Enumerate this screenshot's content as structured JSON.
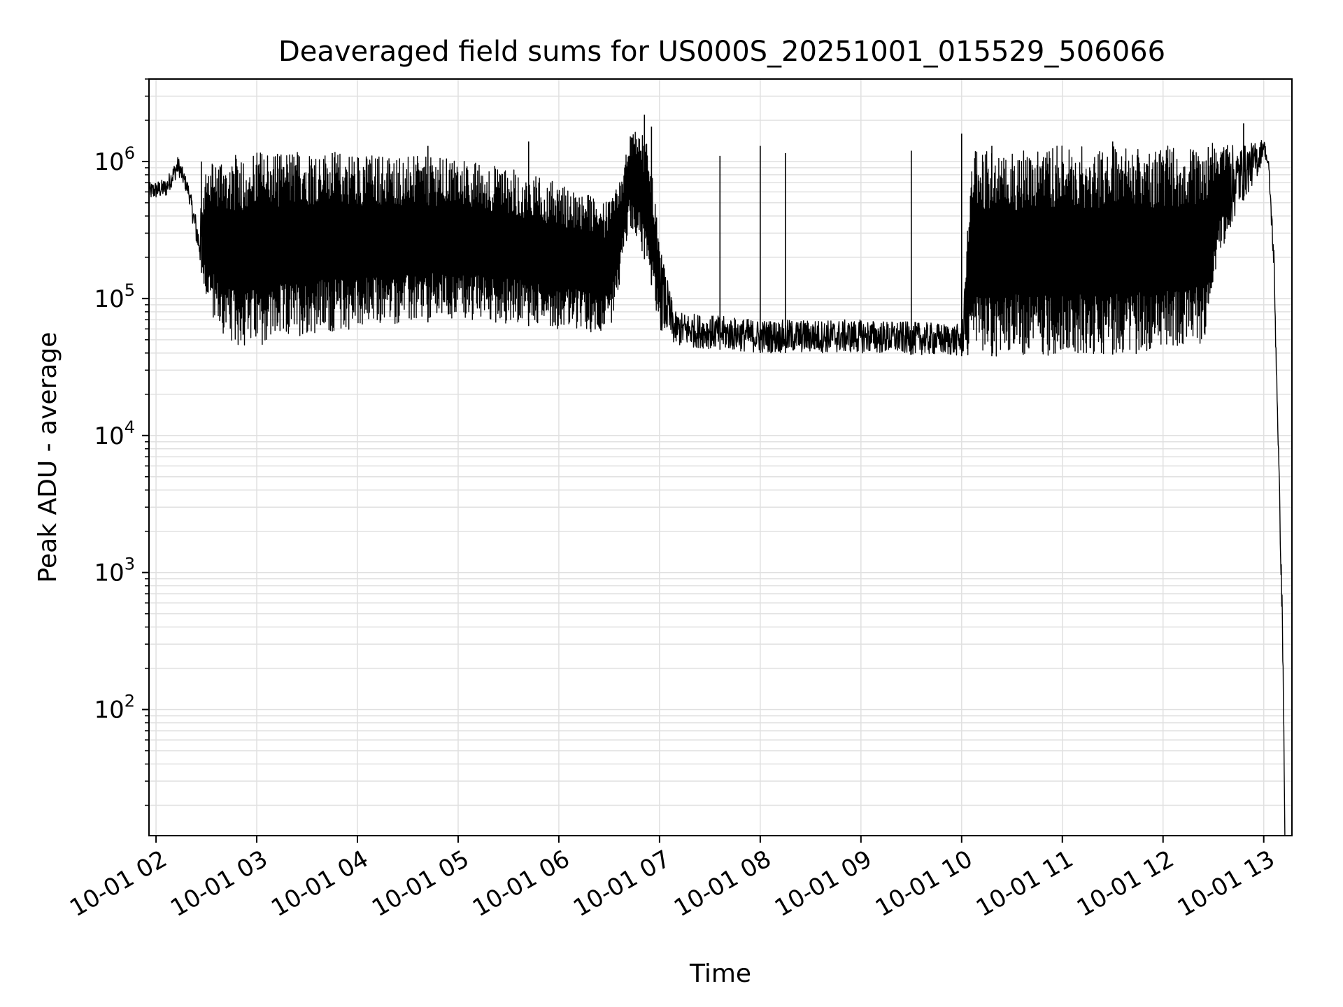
{
  "chart_data": {
    "type": "line",
    "title": "Deaveraged field sums for US000S_20251001_015529_506066",
    "xlabel": "Time",
    "ylabel": "Peak ADU - average",
    "yscale": "log",
    "ylim": [
      12,
      4000000
    ],
    "xlim_hours": [
      1.93,
      13.28
    ],
    "grid": true,
    "line_color": "#000000",
    "grid_color": "#e0e0e0",
    "x_ticks": [
      {
        "hour": 2,
        "label": "10-01 02"
      },
      {
        "hour": 3,
        "label": "10-01 03"
      },
      {
        "hour": 4,
        "label": "10-01 04"
      },
      {
        "hour": 5,
        "label": "10-01 05"
      },
      {
        "hour": 6,
        "label": "10-01 06"
      },
      {
        "hour": 7,
        "label": "10-01 07"
      },
      {
        "hour": 8,
        "label": "10-01 08"
      },
      {
        "hour": 9,
        "label": "10-01 09"
      },
      {
        "hour": 10,
        "label": "10-01 10"
      },
      {
        "hour": 11,
        "label": "10-01 11"
      },
      {
        "hour": 12,
        "label": "10-01 12"
      },
      {
        "hour": 13,
        "label": "10-01 13"
      }
    ],
    "y_ticks": [
      {
        "value": 100,
        "base": "10",
        "exp": "2"
      },
      {
        "value": 1000,
        "base": "10",
        "exp": "3"
      },
      {
        "value": 10000,
        "base": "10",
        "exp": "4"
      },
      {
        "value": 100000,
        "base": "10",
        "exp": "5"
      },
      {
        "value": 1000000,
        "base": "10",
        "exp": "6"
      }
    ],
    "envelope": [
      {
        "hour": 1.93,
        "low": 520000,
        "high": 700000
      },
      {
        "hour": 2.1,
        "low": 550000,
        "high": 750000
      },
      {
        "hour": 2.22,
        "low": 800000,
        "high": 1100000
      },
      {
        "hour": 2.32,
        "low": 550000,
        "high": 700000
      },
      {
        "hour": 2.42,
        "low": 200000,
        "high": 350000
      },
      {
        "hour": 2.5,
        "low": 100000,
        "high": 900000
      },
      {
        "hour": 2.6,
        "low": 60000,
        "high": 1100000
      },
      {
        "hour": 2.75,
        "low": 45000,
        "high": 1100000
      },
      {
        "hour": 3.0,
        "low": 45000,
        "high": 1200000
      },
      {
        "hour": 3.5,
        "low": 55000,
        "high": 1200000
      },
      {
        "hour": 4.0,
        "low": 60000,
        "high": 1150000
      },
      {
        "hour": 4.5,
        "low": 65000,
        "high": 1100000
      },
      {
        "hour": 5.0,
        "low": 70000,
        "high": 1050000
      },
      {
        "hour": 5.5,
        "low": 65000,
        "high": 900000
      },
      {
        "hour": 6.0,
        "low": 60000,
        "high": 700000
      },
      {
        "hour": 6.5,
        "low": 55000,
        "high": 500000
      },
      {
        "hour": 6.6,
        "low": 120000,
        "high": 700000
      },
      {
        "hour": 6.7,
        "low": 350000,
        "high": 1500000
      },
      {
        "hour": 6.8,
        "low": 250000,
        "high": 1800000
      },
      {
        "hour": 6.9,
        "low": 150000,
        "high": 1200000
      },
      {
        "hour": 7.0,
        "low": 60000,
        "high": 250000
      },
      {
        "hour": 7.15,
        "low": 45000,
        "high": 80000
      },
      {
        "hour": 8.0,
        "low": 40000,
        "high": 70000
      },
      {
        "hour": 9.0,
        "low": 40000,
        "high": 70000
      },
      {
        "hour": 10.0,
        "low": 38000,
        "high": 65000
      },
      {
        "hour": 10.1,
        "low": 38000,
        "high": 1200000
      },
      {
        "hour": 11.0,
        "low": 38000,
        "high": 1300000
      },
      {
        "hour": 12.0,
        "low": 40000,
        "high": 1300000
      },
      {
        "hour": 12.4,
        "low": 45000,
        "high": 1300000
      },
      {
        "hour": 12.55,
        "low": 200000,
        "high": 1400000
      },
      {
        "hour": 12.75,
        "low": 450000,
        "high": 1300000
      },
      {
        "hour": 12.95,
        "low": 800000,
        "high": 1400000
      },
      {
        "hour": 13.0,
        "low": 1200000,
        "high": 1500000
      },
      {
        "hour": 13.05,
        "low": 800000,
        "high": 1000000
      },
      {
        "hour": 13.1,
        "low": 150000,
        "high": 250000
      },
      {
        "hour": 13.15,
        "low": 5000,
        "high": 7000
      },
      {
        "hour": 13.19,
        "low": 200,
        "high": 400
      },
      {
        "hour": 13.21,
        "low": 12,
        "high": 12
      }
    ],
    "spikes": [
      {
        "hour": 2.45,
        "value": 1000000
      },
      {
        "hour": 3.75,
        "value": 1150000
      },
      {
        "hour": 4.7,
        "value": 1300000
      },
      {
        "hour": 5.7,
        "value": 1400000
      },
      {
        "hour": 6.72,
        "value": 1500000
      },
      {
        "hour": 6.85,
        "value": 2200000
      },
      {
        "hour": 6.92,
        "value": 1800000
      },
      {
        "hour": 7.6,
        "value": 1100000
      },
      {
        "hour": 8.0,
        "value": 1300000
      },
      {
        "hour": 8.25,
        "value": 1150000
      },
      {
        "hour": 9.5,
        "value": 1200000
      },
      {
        "hour": 10.0,
        "value": 1600000
      },
      {
        "hour": 10.3,
        "value": 1300000
      },
      {
        "hour": 11.5,
        "value": 1400000
      },
      {
        "hour": 12.8,
        "value": 1900000
      }
    ]
  }
}
